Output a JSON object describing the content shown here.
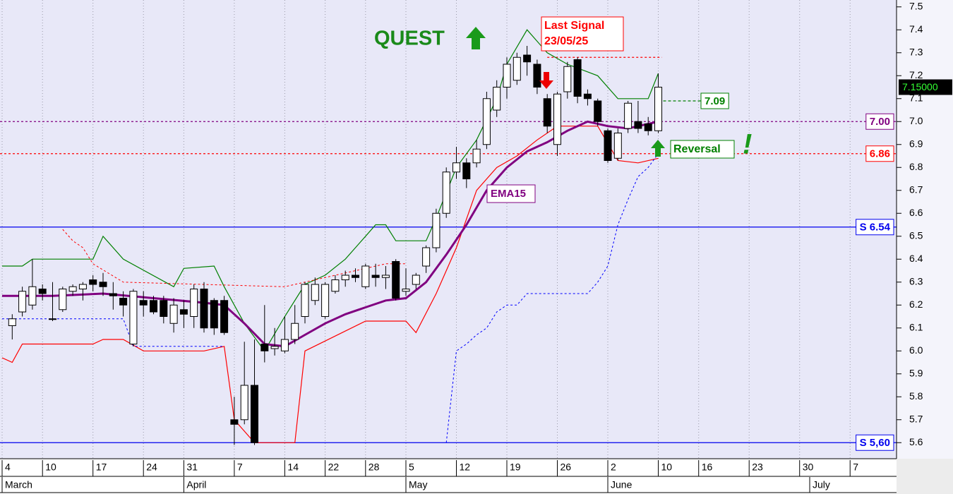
{
  "chart_data": {
    "type": "candlestick",
    "xlim": [
      -0.21,
      88.6
    ],
    "ylim": [
      5.53,
      7.53
    ],
    "yticks": [
      5.6,
      5.7,
      5.8,
      5.9,
      {
        "value": 6.0,
        "label": "6.0"
      },
      6.1,
      6.2,
      6.3,
      6.4,
      6.5,
      6.6,
      6.7,
      6.8,
      6.9,
      {
        "value": 7.0,
        "label": "7.0"
      },
      7.1,
      7.2,
      7.3,
      7.4,
      7.5
    ],
    "xticks": [
      {
        "value": 0,
        "label": "4"
      },
      {
        "value": 4,
        "label": "10"
      },
      {
        "value": 9,
        "label": "17"
      },
      {
        "value": 14,
        "label": "24"
      },
      {
        "value": 18,
        "label": "31"
      },
      {
        "value": 23,
        "label": "7"
      },
      {
        "value": 28,
        "label": "14"
      },
      {
        "value": 32,
        "label": "22"
      },
      {
        "value": 36,
        "label": "28"
      },
      {
        "value": 40,
        "label": "5"
      },
      {
        "value": 45,
        "label": "12"
      },
      {
        "value": 50,
        "label": "19"
      },
      {
        "value": 55,
        "label": "26"
      },
      {
        "value": 60,
        "label": "2"
      },
      {
        "value": 65,
        "label": "10"
      },
      {
        "value": 69,
        "label": "16"
      },
      {
        "value": 74,
        "label": "23"
      },
      {
        "value": 79,
        "label": "30"
      },
      {
        "value": 84,
        "label": "7"
      }
    ],
    "months": [
      {
        "value": 0,
        "label": "March"
      },
      {
        "value": 18,
        "label": "April"
      },
      {
        "value": 40,
        "label": "May"
      },
      {
        "value": 60,
        "label": "June"
      },
      {
        "value": 80,
        "label": "July"
      }
    ],
    "grid": true,
    "candles": {
      "x": [
        1,
        2,
        3,
        4,
        5,
        6,
        7,
        8,
        9,
        10,
        11,
        12,
        13,
        14,
        15,
        16,
        17,
        18,
        19,
        20,
        21,
        22,
        23,
        24,
        25,
        26,
        27,
        28,
        29,
        30,
        31,
        32,
        33,
        34,
        35,
        36,
        37,
        38,
        39,
        40,
        41,
        42,
        43,
        44,
        45,
        46,
        47,
        48,
        49,
        50,
        51,
        52,
        53,
        54,
        55,
        56,
        57,
        58,
        59,
        60,
        61,
        62,
        63,
        64,
        65
      ],
      "open": [
        6.11,
        6.17,
        6.2,
        6.27,
        6.14,
        6.18,
        6.26,
        6.27,
        6.31,
        6.3,
        6.25,
        6.23,
        6.03,
        6.22,
        6.22,
        6.22,
        6.12,
        6.18,
        6.15,
        6.27,
        6.22,
        6.22,
        5.7,
        5.7,
        5.85,
        6.03,
        6.01,
        6.0,
        6.05,
        6.15,
        6.22,
        6.15,
        6.26,
        6.31,
        6.33,
        6.28,
        6.33,
        6.32,
        6.39,
        6.26,
        6.29,
        6.37,
        6.45,
        6.6,
        6.78,
        6.82,
        6.82,
        6.9,
        7.05,
        7.15,
        7.18,
        7.29,
        7.25,
        7.1,
        6.9,
        7.13,
        7.27,
        7.12,
        7.09,
        6.96,
        6.84,
        6.97,
        7.0,
        6.99,
        6.96
      ],
      "high": [
        6.16,
        6.28,
        6.4,
        6.29,
        6.3,
        6.28,
        6.29,
        6.3,
        6.33,
        6.34,
        6.3,
        6.26,
        6.27,
        6.26,
        6.24,
        6.24,
        6.23,
        6.22,
        6.29,
        6.3,
        6.23,
        6.24,
        5.8,
        6.04,
        6.05,
        6.2,
        6.1,
        6.15,
        6.2,
        6.3,
        6.32,
        6.3,
        6.33,
        6.35,
        6.36,
        6.38,
        6.38,
        6.37,
        6.4,
        6.36,
        6.34,
        6.46,
        6.62,
        6.8,
        6.89,
        6.84,
        6.92,
        7.13,
        7.18,
        7.28,
        7.3,
        7.33,
        7.27,
        7.12,
        7.13,
        7.26,
        7.28,
        7.14,
        7.1,
        6.97,
        6.97,
        7.09,
        7.09,
        7.02,
        7.21
      ],
      "low": [
        6.05,
        6.15,
        6.18,
        6.22,
        6.13,
        6.17,
        6.24,
        6.22,
        6.26,
        6.24,
        6.18,
        6.15,
        6.02,
        6.15,
        6.16,
        6.12,
        6.08,
        6.1,
        6.1,
        6.08,
        6.07,
        6.07,
        5.59,
        5.68,
        5.59,
        5.95,
        5.98,
        5.99,
        6.03,
        6.12,
        6.2,
        6.14,
        6.25,
        6.28,
        6.3,
        6.27,
        6.28,
        6.27,
        6.22,
        6.24,
        6.27,
        6.34,
        6.43,
        6.58,
        6.75,
        6.71,
        6.8,
        6.88,
        7.02,
        7.1,
        7.16,
        7.2,
        7.12,
        6.95,
        6.85,
        7.1,
        7.08,
        7.07,
        6.98,
        6.82,
        6.83,
        6.95,
        6.95,
        6.94,
        6.95
      ],
      "close": [
        6.14,
        6.26,
        6.28,
        6.25,
        6.14,
        6.27,
        6.28,
        6.29,
        6.29,
        6.28,
        6.24,
        6.2,
        6.26,
        6.2,
        6.17,
        6.15,
        6.2,
        6.16,
        6.27,
        6.1,
        6.1,
        6.08,
        5.68,
        5.85,
        5.6,
        6.0,
        6.02,
        6.05,
        6.12,
        6.29,
        6.29,
        6.29,
        6.31,
        6.33,
        6.32,
        6.37,
        6.32,
        6.33,
        6.23,
        6.27,
        6.33,
        6.45,
        6.6,
        6.78,
        6.82,
        6.75,
        6.88,
        7.1,
        7.15,
        7.25,
        7.28,
        7.26,
        7.15,
        6.98,
        7.12,
        7.24,
        7.11,
        7.1,
        7.0,
        6.83,
        6.95,
        7.08,
        6.97,
        6.96,
        7.15
      ]
    },
    "lines": [
      {
        "color": "#008000",
        "dash": "none",
        "width": 1.2,
        "x": [
          0,
          2,
          3,
          9,
          10,
          12,
          17,
          18,
          21,
          22,
          24,
          26,
          28,
          30,
          32,
          34,
          36,
          37,
          38,
          39,
          42,
          43,
          45,
          47,
          49,
          50,
          52,
          54,
          56,
          59,
          61,
          64,
          65
        ],
        "values": [
          6.37,
          6.37,
          6.4,
          6.4,
          6.5,
          6.4,
          6.28,
          6.36,
          6.37,
          6.28,
          6.12,
          6.0,
          6.15,
          6.29,
          6.33,
          6.4,
          6.5,
          6.55,
          6.55,
          6.48,
          6.48,
          6.58,
          6.8,
          6.92,
          7.1,
          7.25,
          7.4,
          7.3,
          7.25,
          7.2,
          7.1,
          7.1,
          7.21
        ]
      },
      {
        "color": "#ff0000",
        "dash": "none",
        "width": 1.2,
        "x": [
          0,
          1,
          2,
          9,
          10,
          12,
          14,
          20,
          22,
          23,
          25,
          29,
          30,
          36,
          40,
          41,
          43,
          45,
          47,
          49,
          51,
          53,
          55,
          59,
          61,
          63,
          65
        ],
        "values": [
          5.97,
          5.95,
          6.03,
          6.03,
          6.05,
          6.05,
          6.0,
          6.0,
          6.02,
          5.7,
          5.6,
          5.6,
          6.0,
          6.13,
          6.13,
          6.08,
          6.25,
          6.45,
          6.7,
          6.8,
          6.85,
          6.92,
          6.98,
          6.98,
          6.83,
          6.82,
          6.84
        ]
      },
      {
        "color": "#ff0000",
        "dash": "3,3",
        "width": 1,
        "x": [
          6,
          7,
          8,
          9,
          12,
          28,
          29,
          38,
          40
        ],
        "values": [
          6.53,
          6.48,
          6.45,
          6.38,
          6.3,
          6.28,
          6.29,
          6.38,
          6.38
        ]
      },
      {
        "color": "#0000ff",
        "dash": "3,3",
        "width": 1,
        "x": [
          0,
          12,
          13,
          22,
          33,
          44,
          45,
          46,
          47,
          48,
          49,
          50,
          51,
          52,
          58,
          59,
          60,
          61,
          62,
          63,
          64,
          65
        ],
        "values": [
          6.14,
          6.14,
          6.02,
          6.02,
          null,
          5.6,
          6.0,
          6.03,
          6.07,
          6.1,
          6.17,
          6.2,
          6.2,
          6.25,
          6.25,
          6.3,
          6.37,
          6.55,
          6.66,
          6.76,
          6.8,
          6.86
        ]
      },
      {
        "color": "#800080",
        "dash": "none",
        "width": 3,
        "x": [
          0,
          5,
          10,
          15,
          20,
          22,
          24,
          26,
          28,
          30,
          32,
          34,
          36,
          38,
          40,
          42,
          44,
          46,
          48,
          50,
          52,
          54,
          56,
          58,
          60,
          62,
          65
        ],
        "values": [
          6.24,
          6.24,
          6.25,
          6.23,
          6.21,
          6.2,
          6.12,
          6.03,
          6.02,
          6.07,
          6.12,
          6.16,
          6.19,
          6.22,
          6.23,
          6.3,
          6.42,
          6.55,
          6.7,
          6.8,
          6.87,
          6.91,
          6.96,
          7.0,
          6.98,
          6.97,
          7.0
        ]
      }
    ],
    "levels": [
      {
        "value": 6.54,
        "label": "S 6.54",
        "color": "#0000ee",
        "dash": "none"
      },
      {
        "value": 5.6,
        "label": "S 5,60",
        "color": "#0000ee",
        "dash": "none"
      },
      {
        "value": 7.0,
        "label": "7.00",
        "color": "#800080",
        "dash": "3,3"
      },
      {
        "value": 6.86,
        "label": "6.86",
        "color": "#ff0000",
        "dash": "3,3"
      },
      {
        "value": 7.09,
        "label": "7.09",
        "color": "#008000",
        "dash": "4,3",
        "x": 65
      },
      {
        "value": 7.28,
        "color": "#ff0000",
        "dash": "3,3",
        "x": 54
      }
    ],
    "last_price": {
      "value": 7.15,
      "label": "7.15000"
    },
    "annotations": {
      "quest": "QUEST",
      "signal_title": "Last Signal",
      "signal_date": "23/05/25",
      "ema": "EMA15",
      "reversal": "Reversal",
      "exclamation": "!"
    }
  }
}
